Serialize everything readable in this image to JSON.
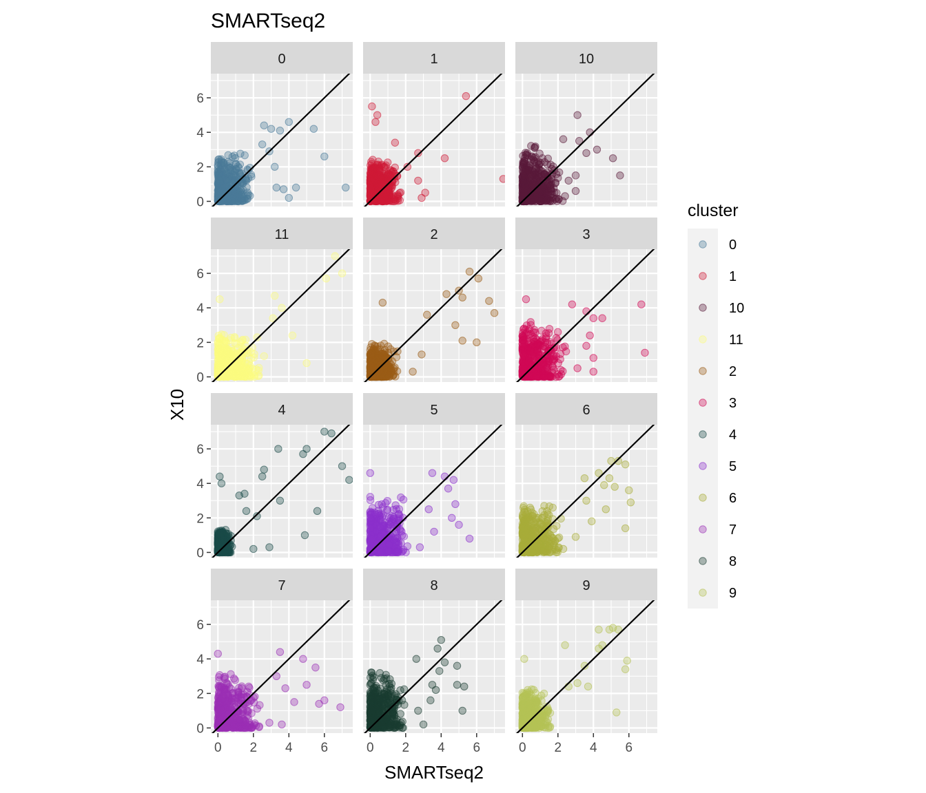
{
  "chart_data": {
    "type": "scatter",
    "title": "SMARTseq2",
    "xlabel": "SMARTseq2",
    "ylabel": "X10",
    "xlim": [
      -0.4,
      7.6
    ],
    "ylim": [
      -0.3,
      7.4
    ],
    "x_ticks": [
      0,
      2,
      4,
      6
    ],
    "y_ticks": [
      0,
      2,
      4,
      6
    ],
    "grid": true,
    "reference_line": "y = x",
    "legend": {
      "title": "cluster",
      "position": "right"
    },
    "point_alpha": 0.35,
    "facets": [
      {
        "label": "0",
        "color": "#4a7a99",
        "core": [
          2.0,
          3.0
        ],
        "outliers": [
          [
            4.0,
            4.6
          ],
          [
            3.5,
            4.1
          ],
          [
            5.4,
            4.2
          ],
          [
            6.0,
            2.6
          ],
          [
            7.2,
            0.8
          ],
          [
            4.4,
            0.8
          ],
          [
            3.3,
            0.8
          ],
          [
            3.7,
            0.7
          ],
          [
            4.0,
            0.2
          ],
          [
            3.2,
            2.0
          ],
          [
            2.6,
            4.4
          ],
          [
            3.0,
            4.2
          ],
          [
            2.9,
            2.9
          ],
          [
            2.5,
            3.3
          ]
        ]
      },
      {
        "label": "1",
        "color": "#cf1a36",
        "core": [
          1.8,
          2.6
        ],
        "outliers": [
          [
            5.4,
            6.1
          ],
          [
            0.1,
            5.5
          ],
          [
            0.4,
            5.0
          ],
          [
            0.3,
            4.6
          ],
          [
            7.5,
            1.3
          ],
          [
            4.2,
            2.5
          ],
          [
            2.1,
            2.0
          ],
          [
            2.7,
            1.2
          ],
          [
            2.9,
            0.2
          ],
          [
            3.1,
            0.5
          ],
          [
            1.4,
            3.4
          ],
          [
            2.7,
            2.8
          ]
        ]
      },
      {
        "label": "10",
        "color": "#5a1a3a",
        "core": [
          2.3,
          3.3
        ],
        "outliers": [
          [
            3.1,
            5.0
          ],
          [
            3.8,
            4.0
          ],
          [
            3.2,
            3.5
          ],
          [
            4.2,
            3.0
          ],
          [
            5.1,
            2.5
          ],
          [
            5.5,
            1.5
          ],
          [
            3.0,
            1.5
          ],
          [
            2.6,
            1.2
          ],
          [
            3.6,
            2.8
          ],
          [
            2.3,
            3.6
          ],
          [
            3.0,
            0.6
          ],
          [
            2.4,
            0.3
          ]
        ]
      },
      {
        "label": "11",
        "color": "#fbfc80",
        "core": [
          2.4,
          2.6
        ],
        "outliers": [
          [
            6.6,
            7.0
          ],
          [
            7.0,
            6.0
          ],
          [
            6.1,
            5.7
          ],
          [
            3.2,
            4.7
          ],
          [
            3.6,
            4.0
          ],
          [
            4.2,
            2.4
          ],
          [
            5.0,
            0.8
          ],
          [
            3.1,
            3.4
          ],
          [
            2.6,
            1.2
          ],
          [
            0.1,
            4.5
          ]
        ]
      },
      {
        "label": "2",
        "color": "#9a5c16",
        "core": [
          1.6,
          2.0
        ],
        "outliers": [
          [
            5.6,
            6.1
          ],
          [
            6.1,
            5.7
          ],
          [
            5.0,
            5.0
          ],
          [
            5.2,
            4.6
          ],
          [
            4.3,
            4.8
          ],
          [
            6.7,
            4.4
          ],
          [
            7.0,
            3.7
          ],
          [
            4.8,
            3.0
          ],
          [
            5.2,
            2.1
          ],
          [
            6.0,
            2.0
          ],
          [
            3.2,
            3.6
          ],
          [
            2.9,
            1.3
          ],
          [
            2.4,
            0.3
          ],
          [
            0.7,
            4.3
          ]
        ]
      },
      {
        "label": "3",
        "color": "#d00a55",
        "core": [
          2.6,
          3.4
        ],
        "outliers": [
          [
            6.7,
            4.2
          ],
          [
            6.9,
            1.4
          ],
          [
            4.0,
            3.4
          ],
          [
            4.5,
            3.4
          ],
          [
            3.8,
            2.4
          ],
          [
            3.6,
            1.8
          ],
          [
            4.0,
            1.1
          ],
          [
            4.0,
            0.3
          ],
          [
            3.6,
            3.8
          ],
          [
            0.2,
            4.5
          ],
          [
            2.8,
            4.2
          ],
          [
            3.1,
            0.5
          ]
        ]
      },
      {
        "label": "4",
        "color": "#1a4a48",
        "core": [
          0.8,
          1.4
        ],
        "outliers": [
          [
            6.0,
            7.0
          ],
          [
            6.4,
            6.9
          ],
          [
            5.0,
            6.0
          ],
          [
            4.8,
            5.7
          ],
          [
            3.4,
            6.0
          ],
          [
            7.0,
            5.0
          ],
          [
            7.4,
            4.2
          ],
          [
            2.6,
            4.8
          ],
          [
            2.5,
            4.4
          ],
          [
            3.5,
            3.0
          ],
          [
            5.6,
            2.4
          ],
          [
            4.9,
            1.0
          ],
          [
            2.2,
            2.1
          ],
          [
            1.2,
            3.3
          ],
          [
            1.5,
            3.4
          ],
          [
            1.6,
            2.4
          ],
          [
            2.0,
            0.2
          ],
          [
            2.9,
            0.3
          ],
          [
            0.1,
            4.4
          ],
          [
            0.2,
            4.0
          ]
        ]
      },
      {
        "label": "5",
        "color": "#8b30cc",
        "core": [
          2.2,
          3.3
        ],
        "outliers": [
          [
            4.2,
            4.4
          ],
          [
            4.7,
            4.2
          ],
          [
            3.5,
            4.6
          ],
          [
            4.4,
            3.7
          ],
          [
            4.8,
            2.8
          ],
          [
            4.6,
            2.0
          ],
          [
            3.3,
            2.5
          ],
          [
            5.0,
            1.6
          ],
          [
            5.6,
            0.8
          ],
          [
            3.6,
            1.2
          ],
          [
            2.8,
            0.3
          ],
          [
            0.0,
            4.6
          ]
        ]
      },
      {
        "label": "6",
        "color": "#a8ad3a",
        "core": [
          2.3,
          2.9
        ],
        "outliers": [
          [
            5.0,
            5.3
          ],
          [
            5.4,
            5.3
          ],
          [
            5.8,
            5.1
          ],
          [
            4.3,
            4.6
          ],
          [
            3.5,
            4.3
          ],
          [
            4.9,
            4.3
          ],
          [
            4.6,
            3.9
          ],
          [
            5.2,
            3.8
          ],
          [
            6.0,
            3.6
          ],
          [
            6.1,
            2.9
          ],
          [
            4.7,
            2.5
          ],
          [
            5.8,
            1.4
          ],
          [
            3.6,
            3.0
          ],
          [
            3.9,
            1.8
          ],
          [
            3.0,
            0.9
          ],
          [
            2.3,
            0.2
          ]
        ]
      },
      {
        "label": "7",
        "color": "#9a2fb5",
        "core": [
          2.5,
          3.3
        ],
        "outliers": [
          [
            3.5,
            4.4
          ],
          [
            4.8,
            4.0
          ],
          [
            5.5,
            3.5
          ],
          [
            6.9,
            1.2
          ],
          [
            5.0,
            2.5
          ],
          [
            5.7,
            1.4
          ],
          [
            6.0,
            1.6
          ],
          [
            4.3,
            1.5
          ],
          [
            3.3,
            3.0
          ],
          [
            3.8,
            2.3
          ],
          [
            3.6,
            0.2
          ],
          [
            2.9,
            0.3
          ],
          [
            0.0,
            4.3
          ]
        ]
      },
      {
        "label": "8",
        "color": "#1a3c32",
        "core": [
          2.0,
          3.4
        ],
        "outliers": [
          [
            4.0,
            5.1
          ],
          [
            3.8,
            4.6
          ],
          [
            4.2,
            3.8
          ],
          [
            4.9,
            3.6
          ],
          [
            3.9,
            3.3
          ],
          [
            3.5,
            2.5
          ],
          [
            3.7,
            2.2
          ],
          [
            4.9,
            2.5
          ],
          [
            5.3,
            2.4
          ],
          [
            5.2,
            1.0
          ],
          [
            2.7,
            1.0
          ],
          [
            3.0,
            0.2
          ],
          [
            3.4,
            1.6
          ],
          [
            2.6,
            4.0
          ]
        ]
      },
      {
        "label": "9",
        "color": "#b5c255",
        "core": [
          1.6,
          2.4
        ],
        "outliers": [
          [
            5.1,
            5.8
          ],
          [
            4.9,
            5.7
          ],
          [
            5.4,
            5.7
          ],
          [
            4.3,
            5.7
          ],
          [
            4.5,
            4.8
          ],
          [
            4.3,
            4.6
          ],
          [
            5.9,
            3.9
          ],
          [
            5.8,
            3.4
          ],
          [
            3.7,
            2.4
          ],
          [
            2.6,
            2.4
          ],
          [
            2.4,
            4.8
          ],
          [
            3.5,
            3.6
          ],
          [
            3.1,
            2.6
          ],
          [
            5.3,
            0.9
          ],
          [
            0.1,
            4.0
          ]
        ]
      }
    ]
  }
}
